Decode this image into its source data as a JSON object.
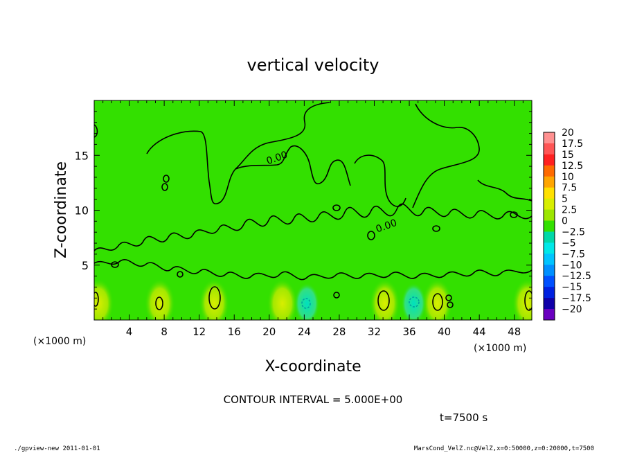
{
  "chart_data": {
    "type": "contour",
    "title": "vertical velocity",
    "xlabel": "X-coordinate",
    "ylabel": "Z-coordinate",
    "x_unit_note": "(×1000 m)",
    "z_unit_note": "(×1000 m)",
    "x_ticks": [
      4,
      8,
      12,
      16,
      20,
      24,
      28,
      32,
      36,
      40,
      44,
      48
    ],
    "z_ticks": [
      5,
      10,
      15
    ],
    "xlim": [
      0,
      50
    ],
    "zlim": [
      0,
      20
    ],
    "colorbar_levels": [
      "20",
      "17.5",
      "15",
      "12.5",
      "10",
      "7.5",
      "5",
      "2.5",
      "0",
      "−2.5",
      "−5",
      "−7.5",
      "−10",
      "−12.5",
      "−15",
      "−17.5",
      "−20"
    ],
    "colorbar_colors": [
      "#ff9090",
      "#ff5555",
      "#ff2020",
      "#ff6a00",
      "#ffa500",
      "#ffe000",
      "#d8ee00",
      "#9ce600",
      "#33e000",
      "#00d8a8",
      "#00e8e8",
      "#00c4ff",
      "#0090ff",
      "#0050ff",
      "#0020e0",
      "#1000a8",
      "#6a00c0"
    ],
    "contour_labels": [
      {
        "text": "0.00",
        "x": 21.0,
        "z": 14.5
      },
      {
        "text": "0.00",
        "x": 33.5,
        "z": 8.3
      }
    ],
    "updraft_cores_z_range": [
      0,
      3
    ],
    "updraft_cores_x": [
      0.5,
      7.5,
      13.7,
      21.5,
      33.2,
      39.2,
      49.5
    ],
    "downdraft_cores_x": [
      24.3,
      36.5
    ],
    "contour_interval_text": "CONTOUR INTERVAL = 5.000E+00",
    "time_text": "t=7500 s"
  },
  "footer": {
    "left": "./gpview-new  2011-01-01",
    "right": "MarsCond_VelZ.nc@VelZ,x=0:50000,z=0:20000,t=7500"
  },
  "colors": {
    "field_green": "#33e000",
    "updraft_yellow": "#d8ee00",
    "downdraft_cyan": "#00e0c0"
  }
}
